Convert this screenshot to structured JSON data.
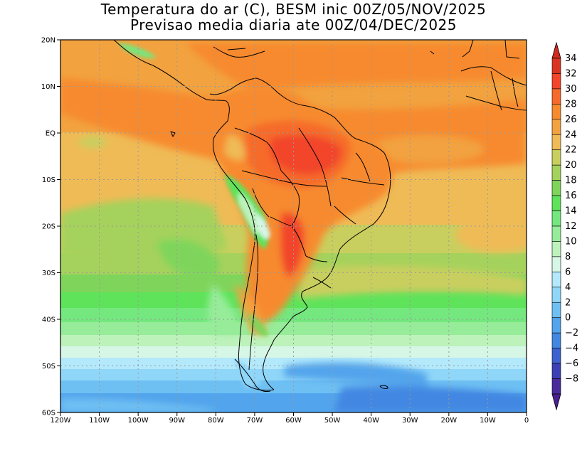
{
  "title": {
    "line1": "Temperatura do ar (C), BESM inic 00Z/05/NOV/2025",
    "line2": "Previsao media diaria ate 00Z/04/DEC/2025"
  },
  "map": {
    "lon_range": [
      -120,
      0
    ],
    "lat_range": [
      -60,
      20
    ],
    "lon_ticks": [
      {
        "value": -120,
        "label": "120W"
      },
      {
        "value": -110,
        "label": "110W"
      },
      {
        "value": -100,
        "label": "100W"
      },
      {
        "value": -90,
        "label": "90W"
      },
      {
        "value": -80,
        "label": "80W"
      },
      {
        "value": -70,
        "label": "70W"
      },
      {
        "value": -60,
        "label": "60W"
      },
      {
        "value": -50,
        "label": "50W"
      },
      {
        "value": -40,
        "label": "40W"
      },
      {
        "value": -30,
        "label": "30W"
      },
      {
        "value": -20,
        "label": "20W"
      },
      {
        "value": -10,
        "label": "10W"
      },
      {
        "value": 0,
        "label": "0"
      }
    ],
    "lat_ticks": [
      {
        "value": 20,
        "label": "20N"
      },
      {
        "value": 10,
        "label": "10N"
      },
      {
        "value": 0,
        "label": "EQ"
      },
      {
        "value": -10,
        "label": "10S"
      },
      {
        "value": -20,
        "label": "20S"
      },
      {
        "value": -30,
        "label": "30S"
      },
      {
        "value": -40,
        "label": "40S"
      },
      {
        "value": -50,
        "label": "50S"
      },
      {
        "value": -60,
        "label": "60S"
      }
    ],
    "grid": true
  },
  "colorbar": {
    "levels": [
      {
        "label": "34",
        "color": "#d93323"
      },
      {
        "label": "32",
        "color": "#f2452a"
      },
      {
        "label": "30",
        "color": "#f66a2b"
      },
      {
        "label": "28",
        "color": "#f78a2e"
      },
      {
        "label": "26",
        "color": "#f2a23f"
      },
      {
        "label": "24",
        "color": "#efbb56"
      },
      {
        "label": "22",
        "color": "#c9cf5e"
      },
      {
        "label": "20",
        "color": "#a5d25c"
      },
      {
        "label": "18",
        "color": "#7fd55b"
      },
      {
        "label": "16",
        "color": "#5ee35a"
      },
      {
        "label": "14",
        "color": "#74e77e"
      },
      {
        "label": "12",
        "color": "#97ec9a"
      },
      {
        "label": "10",
        "color": "#bdf2bb"
      },
      {
        "label": "8",
        "color": "#d6f6e6"
      },
      {
        "label": "6",
        "color": "#b3e9fb"
      },
      {
        "label": "4",
        "color": "#8fd6f8"
      },
      {
        "label": "2",
        "color": "#6ec0f3"
      },
      {
        "label": "0",
        "color": "#52a4ec"
      },
      {
        "label": "−2",
        "color": "#4287e2"
      },
      {
        "label": "−4",
        "color": "#3d61cf"
      },
      {
        "label": "−6",
        "color": "#3d3fb6"
      },
      {
        "label": "−8",
        "color": "#4b2a9c"
      }
    ],
    "top_color": "#d22a1e",
    "bottom_color": "#4a1f8f"
  }
}
